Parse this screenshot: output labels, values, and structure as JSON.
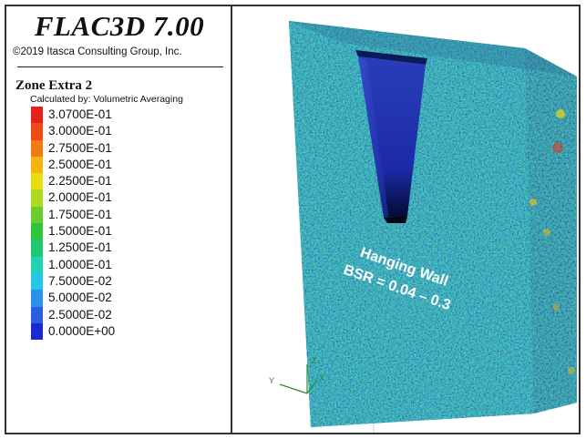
{
  "header": {
    "app_title": "FLAC3D 7.00",
    "copyright": "©2019 Itasca Consulting Group, Inc."
  },
  "legend": {
    "quantity": "Zone Extra 2",
    "calc_note": "Calculated by: Volumetric Averaging",
    "entries": [
      {
        "label": "3.0700E-01",
        "color": "#e8201a"
      },
      {
        "label": "3.0000E-01",
        "color": "#ee4a16"
      },
      {
        "label": "2.7500E-01",
        "color": "#f27a12"
      },
      {
        "label": "2.5000E-01",
        "color": "#f5b510"
      },
      {
        "label": "2.2500E-01",
        "color": "#e8dd10"
      },
      {
        "label": "2.0000E-01",
        "color": "#b0d821"
      },
      {
        "label": "1.7500E-01",
        "color": "#6ccc2c"
      },
      {
        "label": "1.5000E-01",
        "color": "#2ec43c"
      },
      {
        "label": "1.2500E-01",
        "color": "#1ec772"
      },
      {
        "label": "1.0000E-01",
        "color": "#22d2b6"
      },
      {
        "label": "7.5000E-02",
        "color": "#26c6e6"
      },
      {
        "label": "5.0000E-02",
        "color": "#2a92ea"
      },
      {
        "label": "2.5000E-02",
        "color": "#2a5ee0"
      },
      {
        "label": "0.0000E+00",
        "color": "#1a2ad0"
      }
    ]
  },
  "model": {
    "annotation_line1": "Hanging Wall",
    "annotation_line2": "BSR = 0.04 – 0.3"
  },
  "axes": {
    "z": "Z",
    "y": "Y",
    "x": "X",
    "color": "#2a8a2a"
  }
}
